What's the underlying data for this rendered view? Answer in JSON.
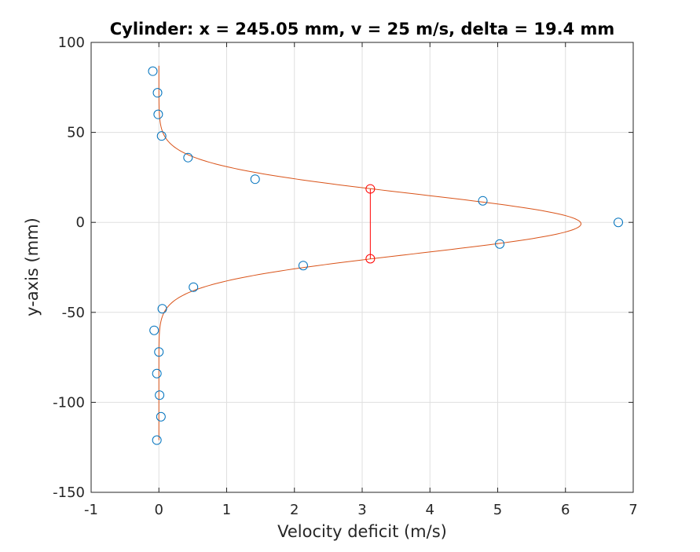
{
  "chart_data": {
    "type": "scatter",
    "title": "Cylinder: x = 245.05 mm, v = 25 m/s, delta = 19.4 mm",
    "xlabel": "Velocity deficit (m/s)",
    "ylabel": "y-axis (mm)",
    "xlim": [
      -1,
      7
    ],
    "ylim": [
      -150,
      100
    ],
    "xticks": [
      -1,
      0,
      1,
      2,
      3,
      4,
      5,
      6,
      7
    ],
    "yticks": [
      -150,
      -100,
      -50,
      0,
      50,
      100
    ],
    "grid": true,
    "legend": "none",
    "colors": {
      "measured": "#0072BD",
      "fit": "#D95319",
      "width_marker": "#FF0000",
      "grid": "#DFDFDF",
      "axis": "#262626"
    },
    "series": [
      {
        "kind": "markers",
        "x": [
          -0.09,
          -0.02,
          -0.01,
          0.04,
          0.43,
          1.42,
          4.78,
          6.78,
          5.03,
          2.13,
          0.51,
          0.05,
          -0.07,
          0.0,
          -0.03,
          0.01,
          0.03,
          -0.03
        ],
        "y": [
          84,
          72,
          60,
          48,
          36,
          24,
          12,
          0,
          -12,
          -24,
          -36,
          -48,
          -60,
          -72,
          -84,
          -96,
          -108,
          -121
        ]
      },
      {
        "kind": "line",
        "gaussian_fit": {
          "amplitude": 6.23,
          "center_y": -0.8,
          "sigma": 16.6
        },
        "y_range": [
          -121,
          87
        ]
      },
      {
        "kind": "width_marker",
        "x": [
          3.12,
          3.12
        ],
        "y": [
          18.6,
          -20.2
        ]
      }
    ]
  }
}
